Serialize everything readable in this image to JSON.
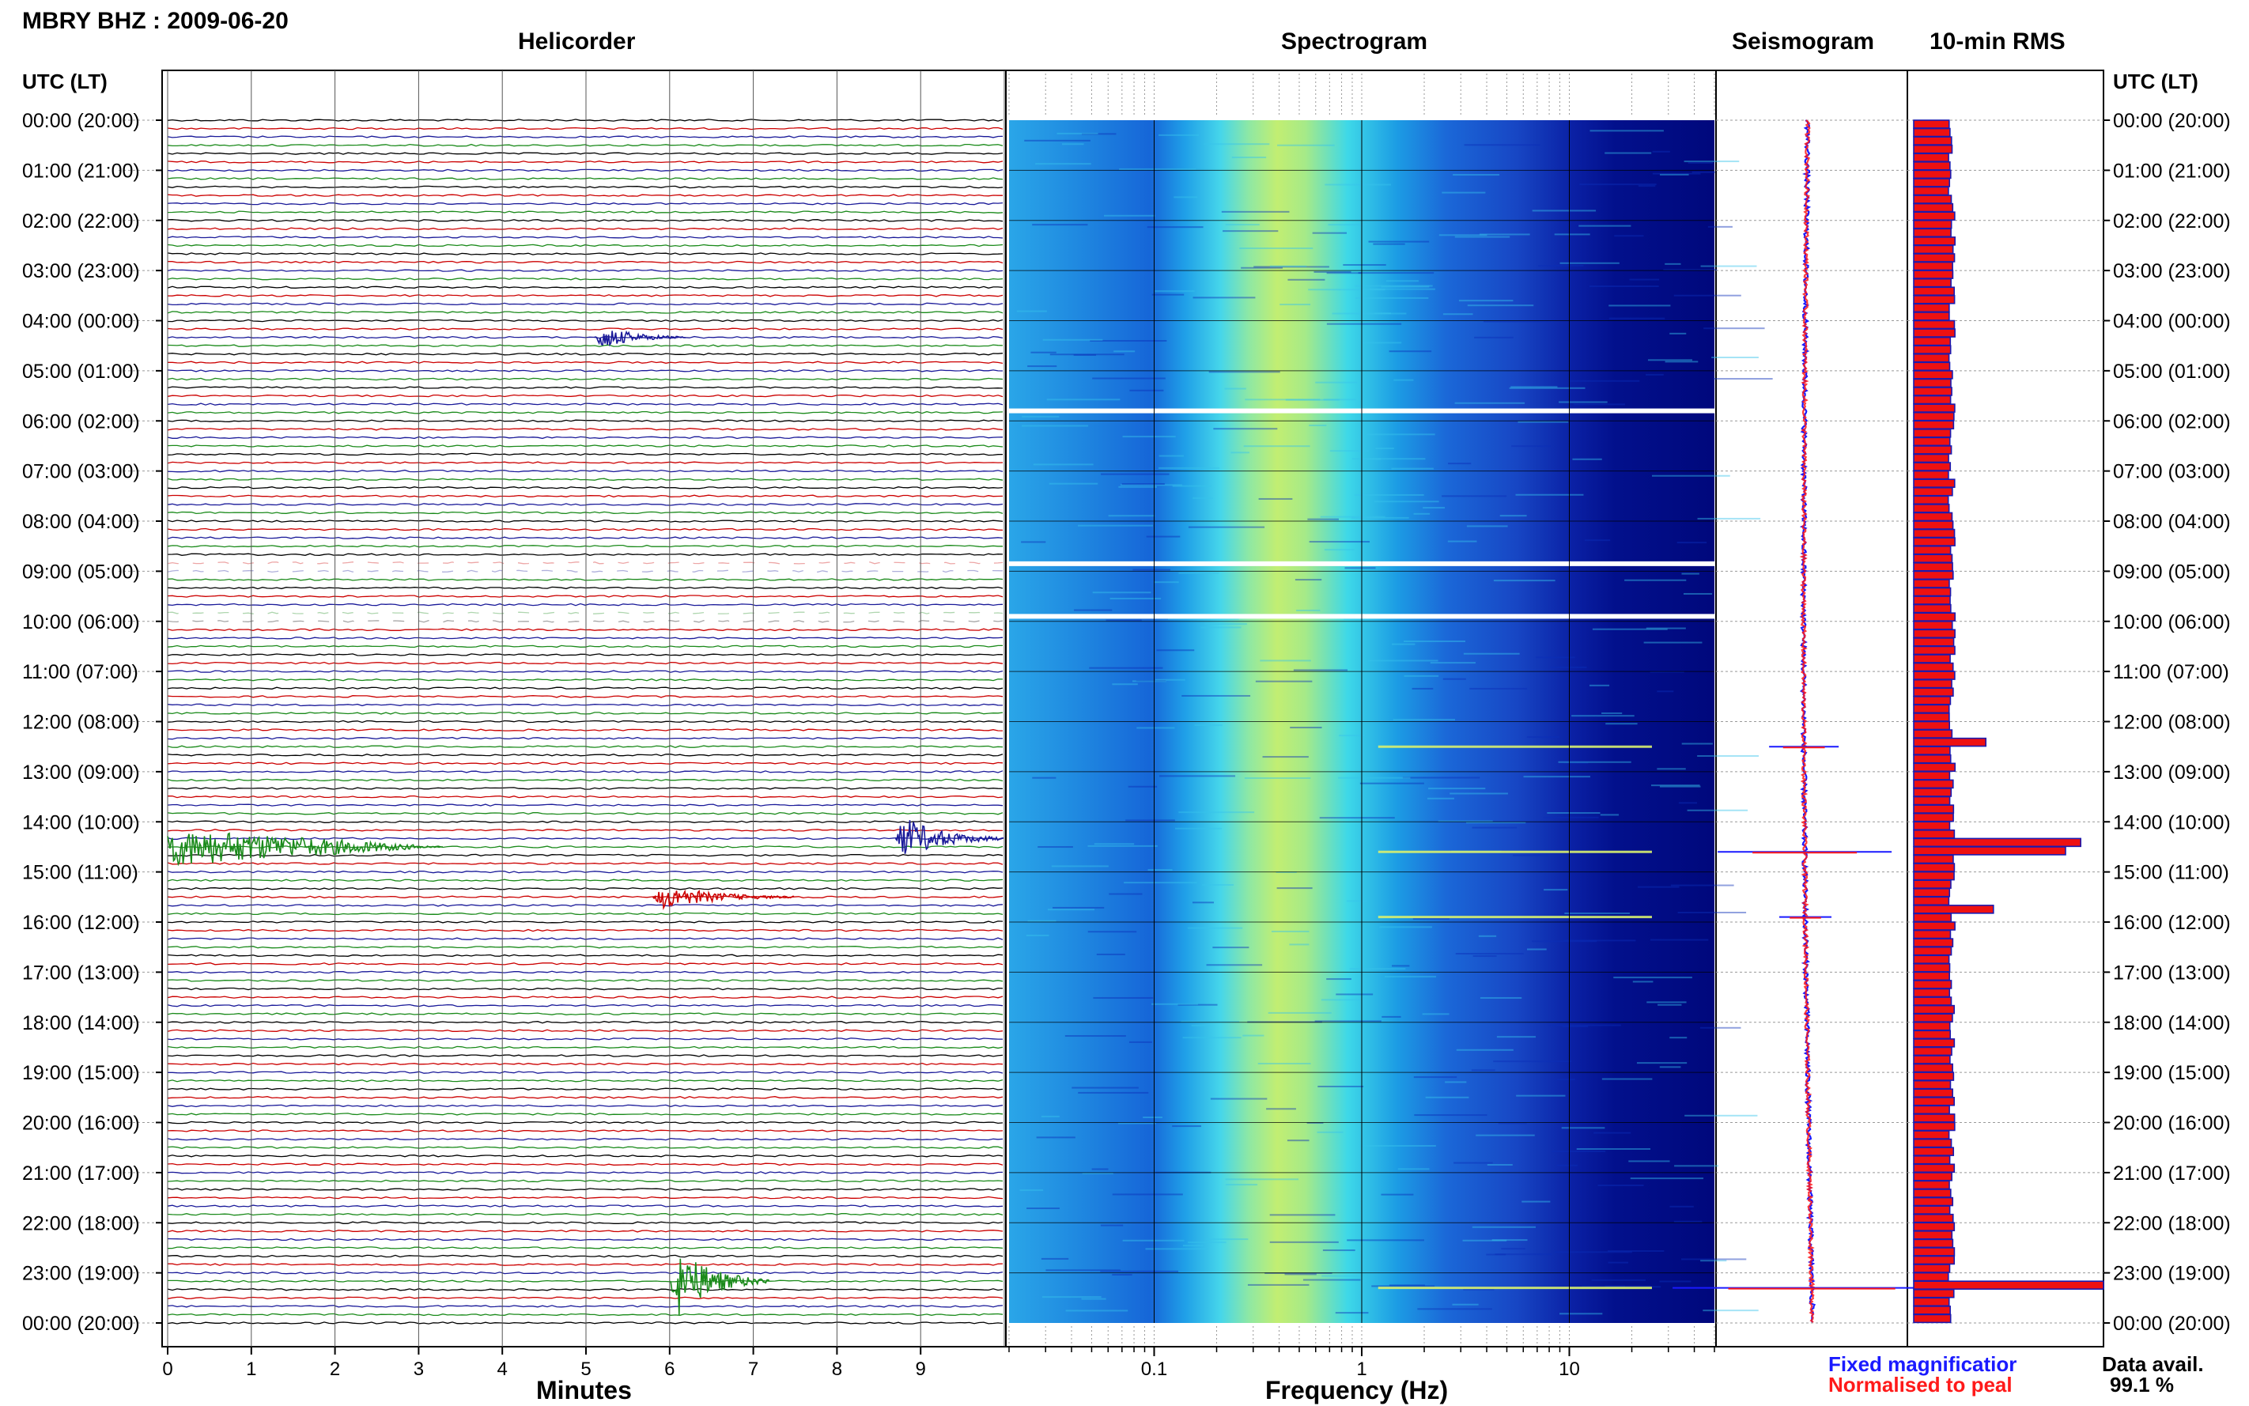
{
  "station_title": "MBRY BHZ : 2009-06-20",
  "panels": {
    "helicorder": "Helicorder",
    "spectrogram": "Spectrogram",
    "seismogram": "Seismogram",
    "rms": "10-min RMS"
  },
  "time_axis_header": "UTC (LT)",
  "time_labels": [
    "00:00 (20:00)",
    "01:00 (21:00)",
    "02:00 (22:00)",
    "03:00 (23:00)",
    "04:00 (00:00)",
    "05:00 (01:00)",
    "06:00 (02:00)",
    "07:00 (03:00)",
    "08:00 (04:00)",
    "09:00 (05:00)",
    "10:00 (06:00)",
    "11:00 (07:00)",
    "12:00 (08:00)",
    "13:00 (09:00)",
    "14:00 (10:00)",
    "15:00 (11:00)",
    "16:00 (12:00)",
    "17:00 (13:00)",
    "18:00 (14:00)",
    "19:00 (15:00)",
    "20:00 (16:00)",
    "21:00 (17:00)",
    "22:00 (18:00)",
    "23:00 (19:00)",
    "00:00 (20:00)"
  ],
  "helicorder_axis": {
    "xlabel": "Minutes",
    "ticks": [
      "0",
      "1",
      "2",
      "3",
      "4",
      "5",
      "6",
      "7",
      "8",
      "9"
    ]
  },
  "spectrogram_axis": {
    "xlabel": "Frequency (Hz)",
    "ticks": [
      "0.1",
      "1",
      "10"
    ]
  },
  "legend": {
    "fixed": "Fixed magnificatior",
    "normalised": "Normalised to peal",
    "fixed_color": "#1a1aff",
    "normalised_color": "#ff1a1a"
  },
  "data_availability": {
    "label": "Data avail.",
    "value": "99.1 %"
  },
  "colors": {
    "trace_cycle": [
      "#000000",
      "#cc0000",
      "#1a1a99",
      "#1a8a1a"
    ],
    "rms_fill": "#ee1111",
    "rms_edge": "#1a1ab0",
    "seismo_fixed": "#1a1aff",
    "seismo_norm": "#ff1a1a"
  },
  "chart_data": [
    {
      "type": "line",
      "title": "Helicorder",
      "xlabel": "Minutes",
      "xlim": [
        0,
        10
      ],
      "ylim_hours": [
        0,
        24
      ],
      "rows_per_hour": 6,
      "trace_color_cycle": [
        "black",
        "red",
        "blue",
        "green"
      ],
      "events": [
        {
          "row": 26,
          "start_min": 5.1,
          "end_min": 6.2,
          "amplitude": 0.9
        },
        {
          "row": 87,
          "start_min": 0.0,
          "end_min": 3.3,
          "amplitude": 1.1
        },
        {
          "row": 86,
          "start_min": 8.7,
          "end_min": 10.0,
          "amplitude": 1.6
        },
        {
          "row": 93,
          "start_min": 5.8,
          "end_min": 7.5,
          "amplitude": 0.9
        },
        {
          "row": 139,
          "start_min": 6.0,
          "end_min": 7.2,
          "amplitude": 2.6
        }
      ],
      "data_gaps_hours": [
        [
          8.85,
          8.95
        ],
        [
          9.9,
          10.0
        ]
      ]
    },
    {
      "type": "heatmap",
      "title": "Spectrogram",
      "xlabel": "Frequency (Hz)",
      "xscale": "log",
      "xlim": [
        0.02,
        50
      ],
      "ylim_hours": [
        0,
        24
      ],
      "peak_band_hz": [
        0.3,
        0.6
      ],
      "gaps_hours": [
        5.8,
        8.85,
        9.9
      ]
    },
    {
      "type": "line",
      "title": "Seismogram",
      "series": [
        {
          "name": "Fixed magnificatior",
          "color": "#1a1aff"
        },
        {
          "name": "Normalised to peal",
          "color": "#ff1a1a"
        }
      ],
      "spikes_hours": [
        {
          "hour": 12.5,
          "amp": 0.4
        },
        {
          "hour": 14.6,
          "amp": 1.0
        },
        {
          "hour": 15.9,
          "amp": 0.3
        },
        {
          "hour": 23.3,
          "amp": 1.6
        }
      ]
    },
    {
      "type": "bar",
      "title": "10-min RMS",
      "bins_per_hour": 6,
      "baseline_relative": 1.0,
      "peaks": [
        {
          "bin": 74,
          "value": 1.9
        },
        {
          "bin": 86,
          "value": 4.4
        },
        {
          "bin": 87,
          "value": 4.0
        },
        {
          "bin": 94,
          "value": 2.1
        },
        {
          "bin": 139,
          "value": 5.0
        }
      ]
    }
  ]
}
